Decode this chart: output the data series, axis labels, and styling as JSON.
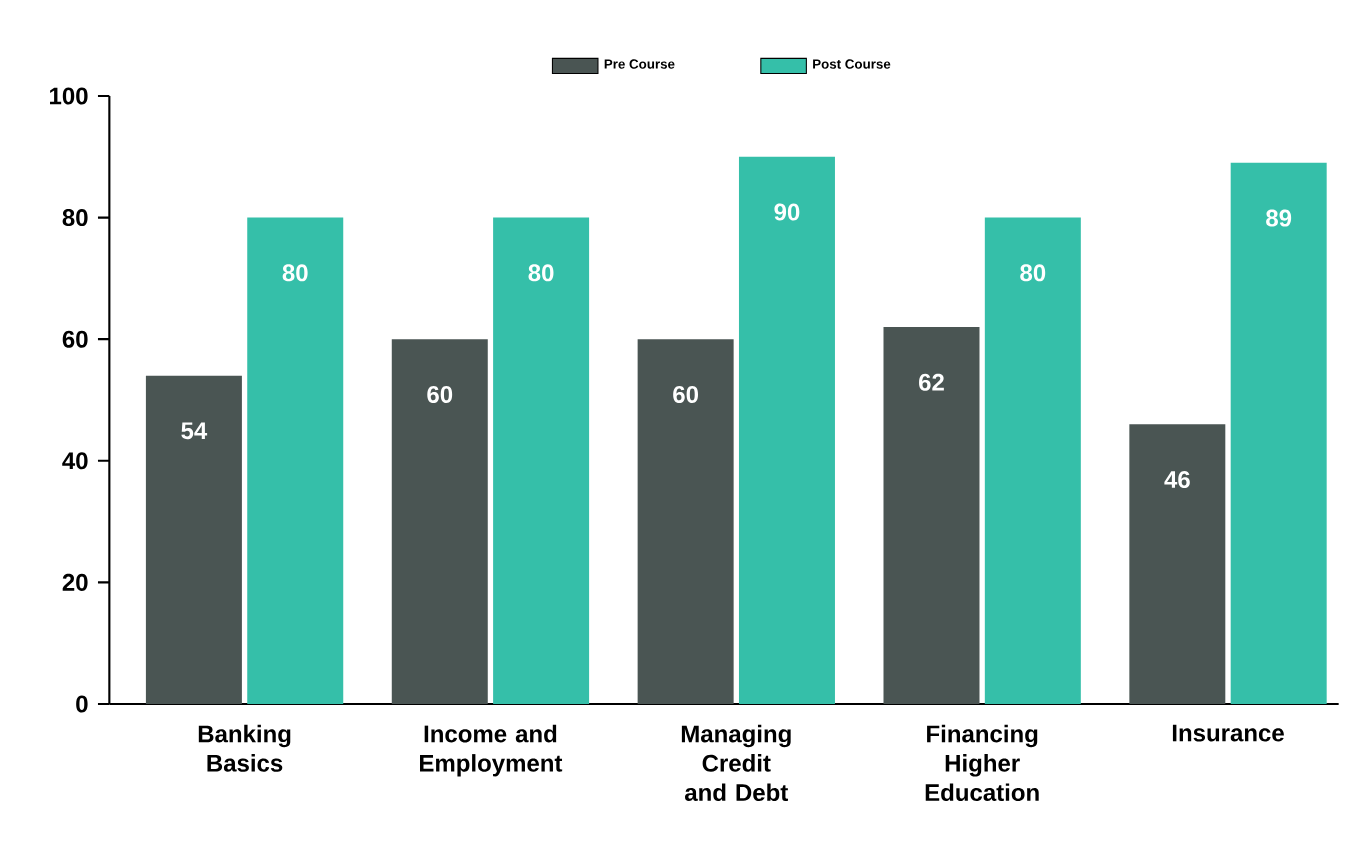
{
  "chart_data": {
    "type": "bar",
    "categories": [
      "Banking Basics",
      "Income and Employment",
      "Managing Credit and Debt",
      "Financing Higher Education",
      "Insurance"
    ],
    "series": [
      {
        "name": "Pre Course",
        "color": "#4a5553",
        "values": [
          54,
          60,
          60,
          62,
          46
        ]
      },
      {
        "name": "Post Course",
        "color": "#35bfa9",
        "values": [
          80,
          80,
          90,
          80,
          89
        ]
      }
    ],
    "ylim": [
      0,
      100
    ],
    "yticks": [
      0,
      20,
      40,
      60,
      80,
      100
    ],
    "grid": false,
    "legend": "top",
    "data_labels": true
  }
}
